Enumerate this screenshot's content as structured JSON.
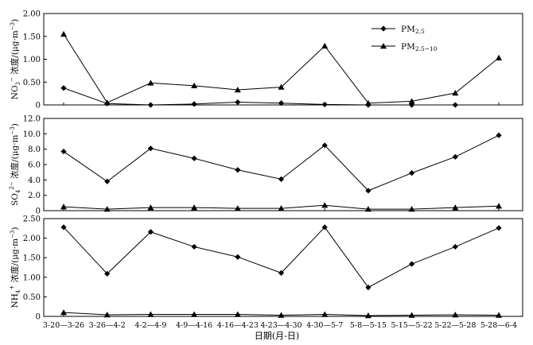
{
  "chart_data": [
    {
      "type": "line",
      "ylabel_main": "NO",
      "ylabel_sub": "3",
      "ylabel_sup": "−",
      "ylabel_rest": " 浓度/(μg·m",
      "ylabel_exp": "−3",
      "ylabel_end": ")",
      "ylim": [
        0,
        2.0
      ],
      "yticks": [
        "0",
        "0.50",
        "1.00",
        "1.50",
        "2.00"
      ],
      "ytick_values": [
        0,
        0.5,
        1.0,
        1.5,
        2.0
      ],
      "legend": {
        "placement": "top-right",
        "entries": [
          {
            "main": "PM",
            "sub": "2.5",
            "marker": "diamond"
          },
          {
            "main": "PM",
            "sub": "2.5−10",
            "marker": "triangle"
          }
        ]
      },
      "series": [
        {
          "marker": "diamond",
          "values": [
            0.37,
            0.03,
            0.0,
            0.02,
            0.06,
            0.04,
            0.01,
            0.0,
            0.0,
            0.0,
            null
          ]
        },
        {
          "marker": "triangle",
          "values": [
            1.55,
            0.05,
            0.48,
            0.42,
            0.33,
            0.39,
            1.29,
            0.04,
            0.08,
            0.26,
            1.03
          ]
        }
      ]
    },
    {
      "type": "line",
      "ylabel_main": "SO",
      "ylabel_sub": "4",
      "ylabel_sup": "2−",
      "ylabel_rest": " 浓度/(μg·m",
      "ylabel_exp": "−3",
      "ylabel_end": ")",
      "ylim": [
        0,
        12.0
      ],
      "yticks": [
        "0",
        "2.0",
        "4.0",
        "6.0",
        "8.0",
        "10.0",
        "12.0"
      ],
      "ytick_values": [
        0,
        2,
        4,
        6,
        8,
        10,
        12
      ],
      "series": [
        {
          "marker": "diamond",
          "values": [
            7.7,
            3.8,
            8.1,
            6.8,
            5.3,
            4.1,
            8.5,
            2.6,
            4.9,
            7.0,
            9.8
          ]
        },
        {
          "marker": "triangle",
          "values": [
            0.5,
            0.2,
            0.4,
            0.4,
            0.3,
            0.3,
            0.7,
            0.2,
            0.2,
            0.4,
            0.6
          ]
        }
      ]
    },
    {
      "type": "line",
      "ylabel_main": "NH",
      "ylabel_sub": "4",
      "ylabel_sup": "+",
      "ylabel_rest": " 浓度/(μg·m",
      "ylabel_exp": "−3",
      "ylabel_end": ")",
      "ylim": [
        0,
        2.5
      ],
      "yticks": [
        "0",
        "0.50",
        "1.00",
        "1.50",
        "2.00",
        "2.50"
      ],
      "ytick_values": [
        0,
        0.5,
        1.0,
        1.5,
        2.0,
        2.5
      ],
      "series": [
        {
          "marker": "diamond",
          "values": [
            2.28,
            1.09,
            2.16,
            1.78,
            1.52,
            1.11,
            2.28,
            0.74,
            1.34,
            1.78,
            2.26
          ]
        },
        {
          "marker": "triangle",
          "values": [
            0.1,
            0.04,
            0.05,
            0.05,
            0.05,
            0.03,
            0.05,
            0.02,
            0.03,
            0.04,
            0.03
          ]
        }
      ]
    }
  ],
  "x": {
    "categories": [
      "3-20—3-26",
      "3-26—4-2",
      "4-2—4-9",
      "4-9—4-16",
      "4-16—4-23",
      "4-23—4-30",
      "4-30—5-7",
      "5-8—5-15",
      "5-15—5-22",
      "5-22—5-28",
      "5-28—6-4"
    ],
    "xlabel": "日期(月-日)"
  }
}
